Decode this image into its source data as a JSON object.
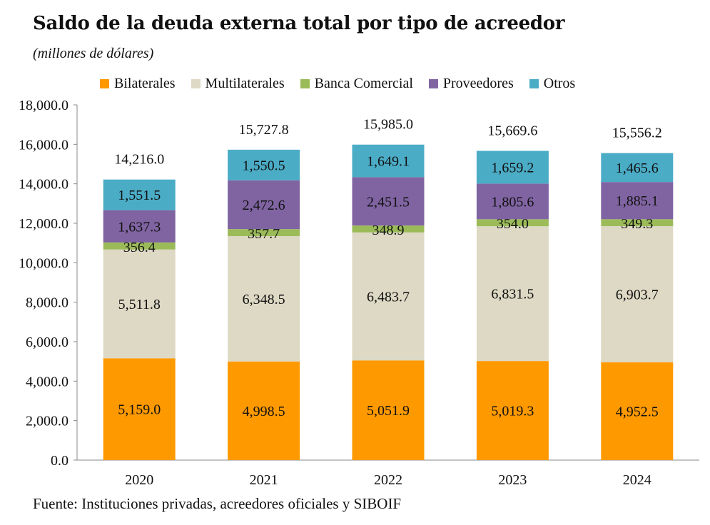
{
  "title": "Saldo de la deuda externa total por tipo de acreedor",
  "subtitle": "(millones de dólares)",
  "source": "Fuente: Instituciones privadas, acreedores oficiales y SIBOIF",
  "chart_data": {
    "type": "bar",
    "stacked": true,
    "categories": [
      "2020",
      "2021",
      "2022",
      "2023",
      "2024"
    ],
    "series": [
      {
        "name": "Bilaterales",
        "color": "#FF9900",
        "values": [
          5159.0,
          4998.5,
          5051.9,
          5019.3,
          4952.5
        ],
        "labels": [
          "5,159.0",
          "4,998.5",
          "5,051.9",
          "5,019.3",
          "4,952.5"
        ]
      },
      {
        "name": "Multilaterales",
        "color": "#DDD9C4",
        "values": [
          5511.8,
          6348.5,
          6483.7,
          6831.5,
          6903.7
        ],
        "labels": [
          "5,511.8",
          "6,348.5",
          "6,483.7",
          "6,831.5",
          "6,903.7"
        ]
      },
      {
        "name": "Banca Comercial",
        "color": "#9BBB59",
        "values": [
          356.4,
          357.7,
          348.9,
          354.0,
          349.3
        ],
        "labels": [
          "356.4",
          "357.7",
          "348.9",
          "354.0",
          "349.3"
        ]
      },
      {
        "name": "Proveedores",
        "color": "#8064A2",
        "values": [
          1637.3,
          2472.6,
          2451.5,
          1805.6,
          1885.1
        ],
        "labels": [
          "1,637.3",
          "2,472.6",
          "2,451.5",
          "1,805.6",
          "1,885.1"
        ]
      },
      {
        "name": "Otros",
        "color": "#4BACC6",
        "values": [
          1551.5,
          1550.5,
          1649.1,
          1659.2,
          1465.6
        ],
        "labels": [
          "1,551.5",
          "1,550.5",
          "1,649.1",
          "1,659.2",
          "1,465.6"
        ]
      }
    ],
    "totals": [
      14216.0,
      15727.8,
      15985.0,
      15669.6,
      15556.2
    ],
    "total_labels": [
      "14,216.0",
      "15,727.8",
      "15,985.0",
      "15,669.6",
      "15,556.2"
    ],
    "ylim": [
      0,
      18000
    ],
    "yticks": [
      "0.0",
      "2,000.0",
      "4,000.0",
      "6,000.0",
      "8,000.0",
      "10,000.0",
      "12,000.0",
      "14,000.0",
      "16,000.0",
      "18,000.0"
    ],
    "grid": false,
    "legend_position": "top"
  }
}
